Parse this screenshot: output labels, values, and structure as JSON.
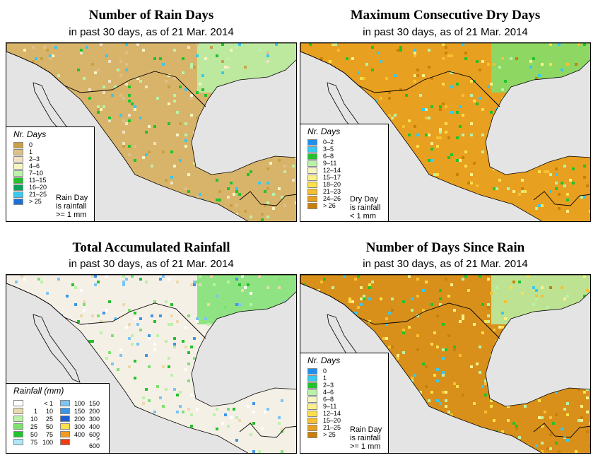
{
  "date_text": "21 Mar. 2014",
  "colors": {
    "land_base": "#f1e3c2",
    "sea": "#e4e4e4",
    "border": "#000000"
  },
  "panels": [
    {
      "title": "Number of Rain Days",
      "subtitle": "in past 30 days, as of  21 Mar. 2014",
      "legend_title": "Nr. Days",
      "legend": [
        {
          "label": "0",
          "color": "#c9a045"
        },
        {
          "label": "1",
          "color": "#ddc08a"
        },
        {
          "label": "2–3",
          "color": "#f1e3c2"
        },
        {
          "label": "4–6",
          "color": "#f5f5c0"
        },
        {
          "label": "7–10",
          "color": "#b9f2a8"
        },
        {
          "label": "11–15",
          "color": "#22c22a"
        },
        {
          "label": "16–20",
          "color": "#0aa05a"
        },
        {
          "label": "21–25",
          "color": "#38c8f0"
        },
        {
          "label": "> 25",
          "color": "#1e6fd0"
        }
      ],
      "note": [
        "Rain Day",
        "is rainfall",
        ">= 1 mm"
      ]
    },
    {
      "title": "Maximum Consecutive Dry Days",
      "subtitle": "in past 30 days, as of  21 Mar. 2014",
      "legend_title": "Nr. Days",
      "legend": [
        {
          "label": "0–2",
          "color": "#1e8ff0"
        },
        {
          "label": "3–5",
          "color": "#38c8f0"
        },
        {
          "label": "6–8",
          "color": "#22c22a"
        },
        {
          "label": "9–11",
          "color": "#b9f2a8"
        },
        {
          "label": "12–14",
          "color": "#f5f5c0"
        },
        {
          "label": "15–17",
          "color": "#fdf08a"
        },
        {
          "label": "18–20",
          "color": "#fde04a"
        },
        {
          "label": "21–23",
          "color": "#f8c030"
        },
        {
          "label": "24–26",
          "color": "#e8a020"
        },
        {
          "label": "> 26",
          "color": "#c8800a"
        }
      ],
      "note": [
        "Dry Day",
        "is rainfall",
        "< 1 mm"
      ]
    },
    {
      "title": "Total Accumulated Rainfall",
      "subtitle": "in past 30 days, as of  21 Mar. 2014",
      "legend_title": "Rainfall (mm)",
      "legend_left": [
        {
          "a": "",
          "b": "< 1",
          "color": "#ffffff"
        },
        {
          "a": "1",
          "b": "10",
          "color": "#ead9b0"
        },
        {
          "a": "10",
          "b": "25",
          "color": "#b9f2a8"
        },
        {
          "a": "25",
          "b": "50",
          "color": "#7ee070"
        },
        {
          "a": "50",
          "b": "75",
          "color": "#22c22a"
        },
        {
          "a": "75",
          "b": "100",
          "color": "#b0e8f8"
        }
      ],
      "legend_right": [
        {
          "a": "100",
          "b": "150",
          "color": "#7cc4f4"
        },
        {
          "a": "150",
          "b": "200",
          "color": "#3c96e8"
        },
        {
          "a": "200",
          "b": "300",
          "color": "#1e5fd0"
        },
        {
          "a": "300",
          "b": "400",
          "color": "#fde04a"
        },
        {
          "a": "400",
          "b": "600",
          "color": "#f89a20"
        },
        {
          "a": "",
          "b": "> 600",
          "color": "#f03c10"
        }
      ]
    },
    {
      "title": "Number of Days Since Rain",
      "subtitle": "in past 30 days, as of  21 Mar. 2014",
      "legend_title": "Nr. Days",
      "legend": [
        {
          "label": "0",
          "color": "#1e8ff0"
        },
        {
          "label": "1",
          "color": "#38c8f0"
        },
        {
          "label": "2–3",
          "color": "#22c22a"
        },
        {
          "label": "4–6",
          "color": "#b9f2a8"
        },
        {
          "label": "6–8",
          "color": "#f5f5c0"
        },
        {
          "label": "9–11",
          "color": "#fdf08a"
        },
        {
          "label": "12–14",
          "color": "#fde04a"
        },
        {
          "label": "15–20",
          "color": "#f8c030"
        },
        {
          "label": "21–25",
          "color": "#e8a020"
        },
        {
          "label": "> 25",
          "color": "#c8800a"
        }
      ],
      "note": [
        "Rain Day",
        "is rainfall",
        ">= 1 mm"
      ]
    }
  ]
}
